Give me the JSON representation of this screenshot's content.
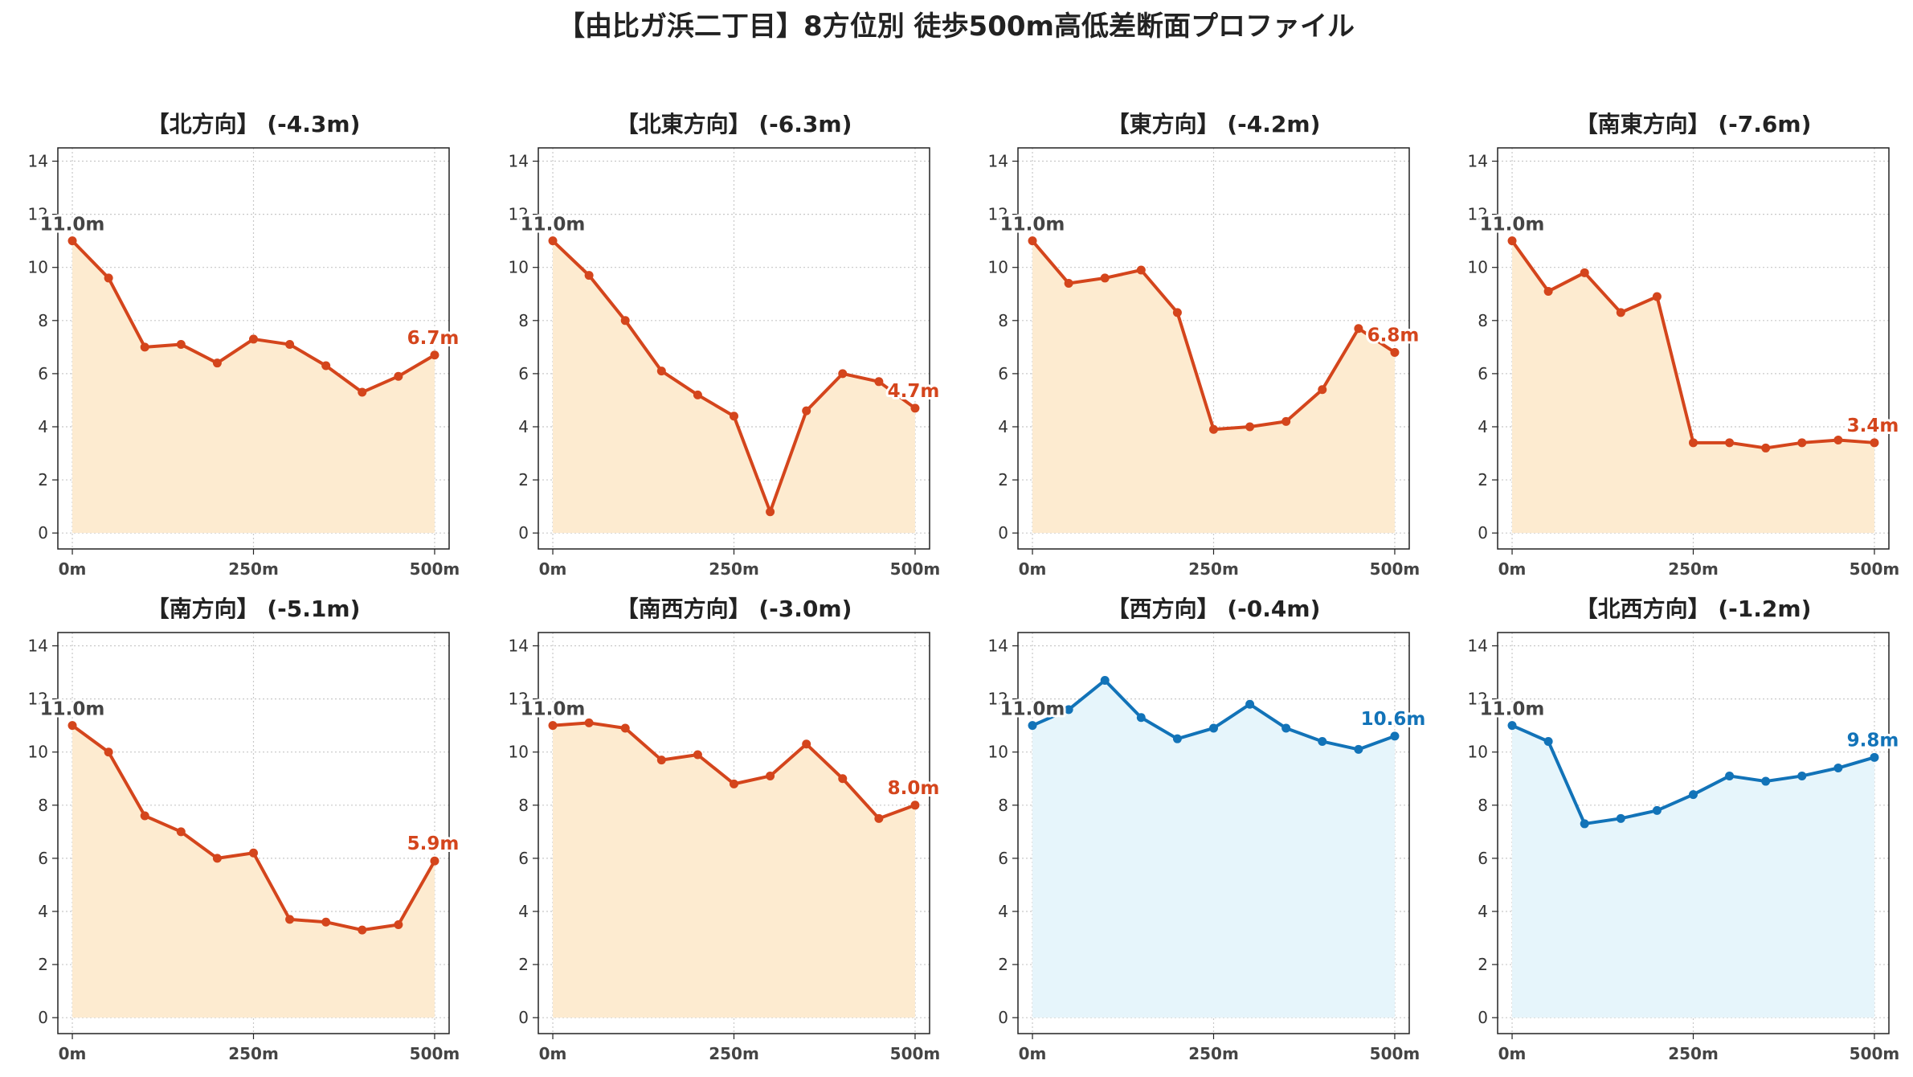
{
  "title": "【由比ガ浜二丁目】8方位別 徒歩500m高低差断面プロファイル",
  "colors": {
    "down_line": "#d4451c",
    "down_fill": "#fdebd0",
    "up_line": "#1273b8",
    "up_fill": "#e6f5fb",
    "start_label": "#444444",
    "grid": "#c8c8c8"
  },
  "chart_data": [
    {
      "type": "area",
      "title": "【北方向】 (-4.3m)",
      "trend": "down",
      "x": [
        0,
        50,
        100,
        150,
        200,
        250,
        300,
        350,
        400,
        450,
        500
      ],
      "values": [
        11.0,
        9.6,
        7.0,
        7.1,
        6.4,
        7.3,
        7.1,
        6.3,
        5.3,
        5.9,
        6.7
      ],
      "start_label": "11.0m",
      "end_label": "6.7m",
      "xticks": [
        "0m",
        "250m",
        "500m"
      ],
      "yticks": [
        "0",
        "2",
        "4",
        "6",
        "8",
        "10",
        "12",
        "14"
      ],
      "xlim": [
        -20,
        520
      ],
      "ylim": [
        -0.6,
        14.5
      ],
      "grid": true
    },
    {
      "type": "area",
      "title": "【北東方向】 (-6.3m)",
      "trend": "down",
      "x": [
        0,
        50,
        100,
        150,
        200,
        250,
        300,
        350,
        400,
        450,
        500
      ],
      "values": [
        11.0,
        9.7,
        8.0,
        6.1,
        5.2,
        4.4,
        0.8,
        4.6,
        6.0,
        5.7,
        4.7
      ],
      "start_label": "11.0m",
      "end_label": "4.7m",
      "xticks": [
        "0m",
        "250m",
        "500m"
      ],
      "yticks": [
        "0",
        "2",
        "4",
        "6",
        "8",
        "10",
        "12",
        "14"
      ],
      "xlim": [
        -20,
        520
      ],
      "ylim": [
        -0.6,
        14.5
      ],
      "grid": true
    },
    {
      "type": "area",
      "title": "【東方向】 (-4.2m)",
      "trend": "down",
      "x": [
        0,
        50,
        100,
        150,
        200,
        250,
        300,
        350,
        400,
        450,
        500
      ],
      "values": [
        11.0,
        9.4,
        9.6,
        9.9,
        8.3,
        3.9,
        4.0,
        4.2,
        5.4,
        7.7,
        6.8
      ],
      "start_label": "11.0m",
      "end_label": "6.8m",
      "xticks": [
        "0m",
        "250m",
        "500m"
      ],
      "yticks": [
        "0",
        "2",
        "4",
        "6",
        "8",
        "10",
        "12",
        "14"
      ],
      "xlim": [
        -20,
        520
      ],
      "ylim": [
        -0.6,
        14.5
      ],
      "grid": true
    },
    {
      "type": "area",
      "title": "【南東方向】 (-7.6m)",
      "trend": "down",
      "x": [
        0,
        50,
        100,
        150,
        200,
        250,
        300,
        350,
        400,
        450,
        500
      ],
      "values": [
        11.0,
        9.1,
        9.8,
        8.3,
        8.9,
        3.4,
        3.4,
        3.2,
        3.4,
        3.5,
        3.4
      ],
      "start_label": "11.0m",
      "end_label": "3.4m",
      "xticks": [
        "0m",
        "250m",
        "500m"
      ],
      "yticks": [
        "0",
        "2",
        "4",
        "6",
        "8",
        "10",
        "12",
        "14"
      ],
      "xlim": [
        -20,
        520
      ],
      "ylim": [
        -0.6,
        14.5
      ],
      "grid": true
    },
    {
      "type": "area",
      "title": "【南方向】 (-5.1m)",
      "trend": "down",
      "x": [
        0,
        50,
        100,
        150,
        200,
        250,
        300,
        350,
        400,
        450,
        500
      ],
      "values": [
        11.0,
        10.0,
        7.6,
        7.0,
        6.0,
        6.2,
        3.7,
        3.6,
        3.3,
        3.5,
        5.9
      ],
      "start_label": "11.0m",
      "end_label": "5.9m",
      "xticks": [
        "0m",
        "250m",
        "500m"
      ],
      "yticks": [
        "0",
        "2",
        "4",
        "6",
        "8",
        "10",
        "12",
        "14"
      ],
      "xlim": [
        -20,
        520
      ],
      "ylim": [
        -0.6,
        14.5
      ],
      "grid": true
    },
    {
      "type": "area",
      "title": "【南西方向】 (-3.0m)",
      "trend": "down",
      "x": [
        0,
        50,
        100,
        150,
        200,
        250,
        300,
        350,
        400,
        450,
        500
      ],
      "values": [
        11.0,
        11.1,
        10.9,
        9.7,
        9.9,
        8.8,
        9.1,
        10.3,
        9.0,
        7.5,
        8.0
      ],
      "start_label": "11.0m",
      "end_label": "8.0m",
      "xticks": [
        "0m",
        "250m",
        "500m"
      ],
      "yticks": [
        "0",
        "2",
        "4",
        "6",
        "8",
        "10",
        "12",
        "14"
      ],
      "xlim": [
        -20,
        520
      ],
      "ylim": [
        -0.6,
        14.5
      ],
      "grid": true
    },
    {
      "type": "area",
      "title": "【西方向】 (-0.4m)",
      "trend": "up",
      "x": [
        0,
        50,
        100,
        150,
        200,
        250,
        300,
        350,
        400,
        450,
        500
      ],
      "values": [
        11.0,
        11.6,
        12.7,
        11.3,
        10.5,
        10.9,
        11.8,
        10.9,
        10.4,
        10.1,
        10.6
      ],
      "start_label": "11.0m",
      "end_label": "10.6m",
      "xticks": [
        "0m",
        "250m",
        "500m"
      ],
      "yticks": [
        "0",
        "2",
        "4",
        "6",
        "8",
        "10",
        "12",
        "14"
      ],
      "xlim": [
        -20,
        520
      ],
      "ylim": [
        -0.6,
        14.5
      ],
      "grid": true
    },
    {
      "type": "area",
      "title": "【北西方向】 (-1.2m)",
      "trend": "up",
      "x": [
        0,
        50,
        100,
        150,
        200,
        250,
        300,
        350,
        400,
        450,
        500
      ],
      "values": [
        11.0,
        10.4,
        7.3,
        7.5,
        7.8,
        8.4,
        9.1,
        8.9,
        9.1,
        9.4,
        9.8
      ],
      "start_label": "11.0m",
      "end_label": "9.8m",
      "xticks": [
        "0m",
        "250m",
        "500m"
      ],
      "yticks": [
        "0",
        "2",
        "4",
        "6",
        "8",
        "10",
        "12",
        "14"
      ],
      "xlim": [
        -20,
        520
      ],
      "ylim": [
        -0.6,
        14.5
      ],
      "grid": true
    }
  ]
}
